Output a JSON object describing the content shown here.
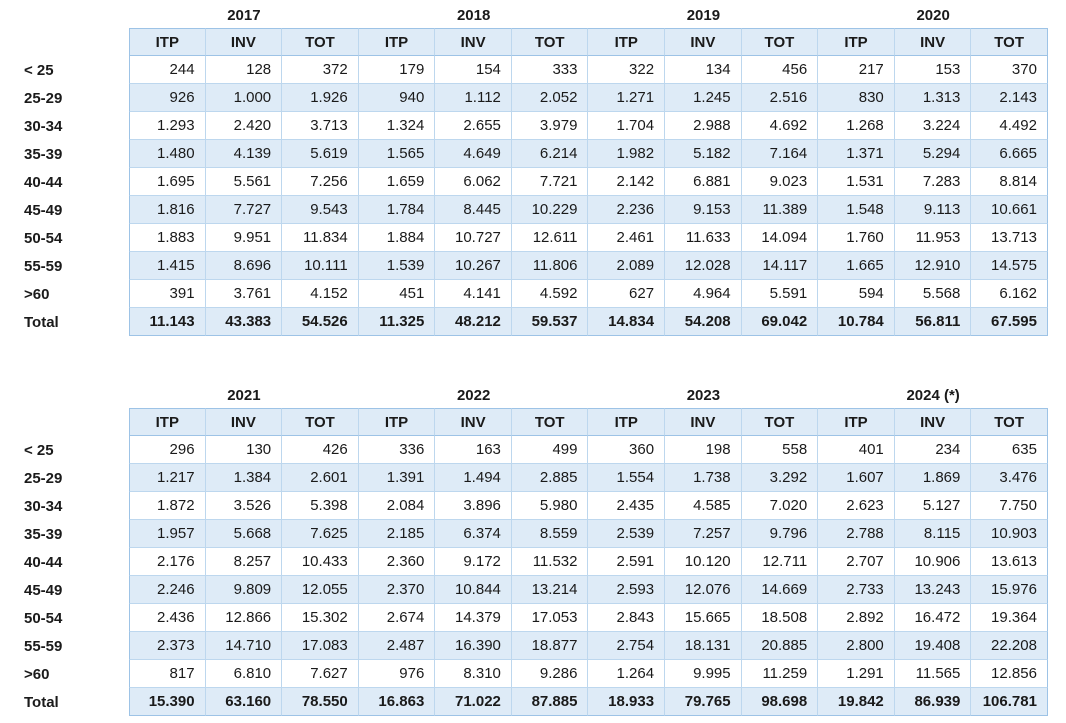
{
  "colors": {
    "header_and_band_fill": "#DEEBF7",
    "inner_gridline": "#BDD7EE",
    "outer_frame": "#9DC3E6",
    "text": "#1A1A1A",
    "background": "#FFFFFF"
  },
  "col_headers": [
    "ITP",
    "INV",
    "TOT"
  ],
  "tables": [
    {
      "years": [
        "2017",
        "2018",
        "2019",
        "2020"
      ],
      "rows": [
        {
          "label": "< 25",
          "values": [
            "244",
            "128",
            "372",
            "179",
            "154",
            "333",
            "322",
            "134",
            "456",
            "217",
            "153",
            "370"
          ]
        },
        {
          "label": "25-29",
          "values": [
            "926",
            "1.000",
            "1.926",
            "940",
            "1.112",
            "2.052",
            "1.271",
            "1.245",
            "2.516",
            "830",
            "1.313",
            "2.143"
          ]
        },
        {
          "label": "30-34",
          "values": [
            "1.293",
            "2.420",
            "3.713",
            "1.324",
            "2.655",
            "3.979",
            "1.704",
            "2.988",
            "4.692",
            "1.268",
            "3.224",
            "4.492"
          ]
        },
        {
          "label": "35-39",
          "values": [
            "1.480",
            "4.139",
            "5.619",
            "1.565",
            "4.649",
            "6.214",
            "1.982",
            "5.182",
            "7.164",
            "1.371",
            "5.294",
            "6.665"
          ]
        },
        {
          "label": "40-44",
          "values": [
            "1.695",
            "5.561",
            "7.256",
            "1.659",
            "6.062",
            "7.721",
            "2.142",
            "6.881",
            "9.023",
            "1.531",
            "7.283",
            "8.814"
          ]
        },
        {
          "label": "45-49",
          "values": [
            "1.816",
            "7.727",
            "9.543",
            "1.784",
            "8.445",
            "10.229",
            "2.236",
            "9.153",
            "11.389",
            "1.548",
            "9.113",
            "10.661"
          ]
        },
        {
          "label": "50-54",
          "values": [
            "1.883",
            "9.951",
            "11.834",
            "1.884",
            "10.727",
            "12.611",
            "2.461",
            "11.633",
            "14.094",
            "1.760",
            "11.953",
            "13.713"
          ]
        },
        {
          "label": "55-59",
          "values": [
            "1.415",
            "8.696",
            "10.111",
            "1.539",
            "10.267",
            "11.806",
            "2.089",
            "12.028",
            "14.117",
            "1.665",
            "12.910",
            "14.575"
          ]
        },
        {
          "label": ">60",
          "values": [
            "391",
            "3.761",
            "4.152",
            "451",
            "4.141",
            "4.592",
            "627",
            "4.964",
            "5.591",
            "594",
            "5.568",
            "6.162"
          ]
        },
        {
          "label": "Total",
          "values": [
            "11.143",
            "43.383",
            "54.526",
            "11.325",
            "48.212",
            "59.537",
            "14.834",
            "54.208",
            "69.042",
            "10.784",
            "56.811",
            "67.595"
          ]
        }
      ]
    },
    {
      "years": [
        "2021",
        "2022",
        "2023",
        "2024 (*)"
      ],
      "rows": [
        {
          "label": "< 25",
          "values": [
            "296",
            "130",
            "426",
            "336",
            "163",
            "499",
            "360",
            "198",
            "558",
            "401",
            "234",
            "635"
          ]
        },
        {
          "label": "25-29",
          "values": [
            "1.217",
            "1.384",
            "2.601",
            "1.391",
            "1.494",
            "2.885",
            "1.554",
            "1.738",
            "3.292",
            "1.607",
            "1.869",
            "3.476"
          ]
        },
        {
          "label": "30-34",
          "values": [
            "1.872",
            "3.526",
            "5.398",
            "2.084",
            "3.896",
            "5.980",
            "2.435",
            "4.585",
            "7.020",
            "2.623",
            "5.127",
            "7.750"
          ]
        },
        {
          "label": "35-39",
          "values": [
            "1.957",
            "5.668",
            "7.625",
            "2.185",
            "6.374",
            "8.559",
            "2.539",
            "7.257",
            "9.796",
            "2.788",
            "8.115",
            "10.903"
          ]
        },
        {
          "label": "40-44",
          "values": [
            "2.176",
            "8.257",
            "10.433",
            "2.360",
            "9.172",
            "11.532",
            "2.591",
            "10.120",
            "12.711",
            "2.707",
            "10.906",
            "13.613"
          ]
        },
        {
          "label": "45-49",
          "values": [
            "2.246",
            "9.809",
            "12.055",
            "2.370",
            "10.844",
            "13.214",
            "2.593",
            "12.076",
            "14.669",
            "2.733",
            "13.243",
            "15.976"
          ]
        },
        {
          "label": "50-54",
          "values": [
            "2.436",
            "12.866",
            "15.302",
            "2.674",
            "14.379",
            "17.053",
            "2.843",
            "15.665",
            "18.508",
            "2.892",
            "16.472",
            "19.364"
          ]
        },
        {
          "label": "55-59",
          "values": [
            "2.373",
            "14.710",
            "17.083",
            "2.487",
            "16.390",
            "18.877",
            "2.754",
            "18.131",
            "20.885",
            "2.800",
            "19.408",
            "22.208"
          ]
        },
        {
          "label": ">60",
          "values": [
            "817",
            "6.810",
            "7.627",
            "976",
            "8.310",
            "9.286",
            "1.264",
            "9.995",
            "11.259",
            "1.291",
            "11.565",
            "12.856"
          ]
        },
        {
          "label": "Total",
          "values": [
            "15.390",
            "63.160",
            "78.550",
            "16.863",
            "71.022",
            "87.885",
            "18.933",
            "79.765",
            "98.698",
            "19.842",
            "86.939",
            "106.781"
          ]
        }
      ]
    }
  ]
}
